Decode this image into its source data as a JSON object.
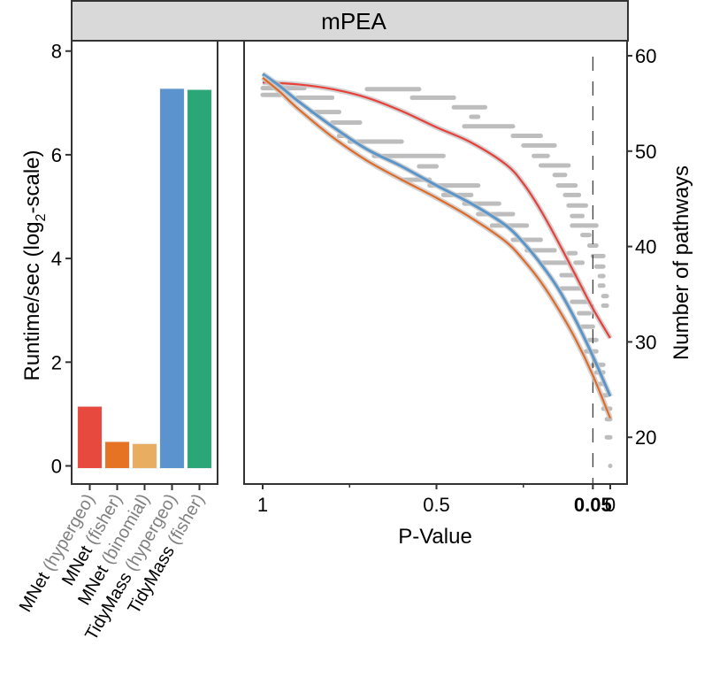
{
  "strip_title": "mPEA",
  "colors": {
    "strip_bg": "#d9d9d9",
    "frame": "#333333",
    "smear": "#bdbdbd",
    "dashed": "#333333"
  },
  "chart_data": [
    {
      "type": "bar",
      "title": "",
      "xlabel": "",
      "ylabel_main": "Runtime/sec (log",
      "ylabel_sub": "2",
      "ylabel_tail": "-scale)",
      "ylim": [
        -0.35,
        8.2
      ],
      "yticks": [
        0,
        2,
        4,
        6,
        8
      ],
      "ytick_labels": [
        "0",
        "2",
        "4",
        "6",
        "8"
      ],
      "categories": [
        {
          "tool": "MNet",
          "method": "(hypergeo)"
        },
        {
          "tool": "MNet",
          "method": "(fisher)"
        },
        {
          "tool": "MNet",
          "method": "(binomial)"
        },
        {
          "tool": "TidyMass",
          "method": "(hypergeo)"
        },
        {
          "tool": "TidyMass",
          "method": "(fisher)"
        }
      ],
      "values": [
        1.15,
        0.47,
        0.43,
        7.28,
        7.26
      ],
      "bar_colors": [
        "#e8493f",
        "#e67324",
        "#e9ad62",
        "#5a93cd",
        "#2ba677"
      ],
      "label_tool_color": "#000000",
      "label_method_color": "#808080"
    },
    {
      "type": "line",
      "title": "",
      "xlabel": "P-Value",
      "ylabel": "Number of pathways",
      "x_reversed": true,
      "xlim": [
        1.01,
        -0.03
      ],
      "ylim": [
        15.3,
        61.8
      ],
      "xticks": [
        1,
        0.5,
        0.05,
        0
      ],
      "xtick_labels": [
        "1",
        "0.5",
        "0.05",
        "0"
      ],
      "xtick_bold": [
        false,
        false,
        true,
        false
      ],
      "x_minor_ticks": [
        0.75,
        0.25
      ],
      "yticks": [
        20,
        30,
        40,
        50,
        60
      ],
      "ytick_labels": [
        "20",
        "30",
        "40",
        "50",
        "60"
      ],
      "axis_side_y": "right",
      "vline": 0.05,
      "series": [
        {
          "name": "series-red",
          "color": "#e8403a",
          "x": [
            1.0,
            0.9,
            0.8,
            0.7,
            0.6,
            0.5,
            0.4,
            0.3,
            0.25,
            0.2,
            0.15,
            0.1,
            0.05,
            0.0
          ],
          "y": [
            57.2,
            57.0,
            56.5,
            55.6,
            54.2,
            52.5,
            50.9,
            48.6,
            46.6,
            43.8,
            40.5,
            37.0,
            33.5,
            30.4
          ]
        },
        {
          "name": "series-blue",
          "color": "#5b96cb",
          "x": [
            1.0,
            0.95,
            0.9,
            0.8,
            0.7,
            0.6,
            0.5,
            0.4,
            0.3,
            0.25,
            0.2,
            0.15,
            0.1,
            0.05,
            0.0
          ],
          "y": [
            58.1,
            56.8,
            55.3,
            52.6,
            50.2,
            48.4,
            46.4,
            44.5,
            42.2,
            40.4,
            38.2,
            35.6,
            32.3,
            28.5,
            24.3
          ]
        },
        {
          "name": "series-orange",
          "color": "#e06a26",
          "x": [
            1.0,
            0.95,
            0.9,
            0.8,
            0.7,
            0.6,
            0.5,
            0.4,
            0.3,
            0.25,
            0.2,
            0.15,
            0.1,
            0.05,
            0.0
          ],
          "y": [
            57.7,
            56.2,
            54.5,
            51.5,
            49.0,
            47.0,
            45.1,
            43.0,
            40.5,
            38.6,
            36.3,
            33.5,
            30.3,
            26.5,
            22.0
          ]
        }
      ],
      "raw_points": [
        {
          "x0": 1.0,
          "x1": 0.88,
          "y": 56.6
        },
        {
          "x0": 1.0,
          "x1": 0.95,
          "y": 55.9
        },
        {
          "x0": 0.9,
          "x1": 0.8,
          "y": 55.6
        },
        {
          "x0": 0.86,
          "x1": 0.78,
          "y": 54.1
        },
        {
          "x0": 0.8,
          "x1": 0.72,
          "y": 53.0
        },
        {
          "x0": 0.78,
          "x1": 0.76,
          "y": 51.6
        },
        {
          "x0": 0.75,
          "x1": 0.6,
          "y": 51.0
        },
        {
          "x0": 0.68,
          "x1": 0.48,
          "y": 49.5
        },
        {
          "x0": 0.55,
          "x1": 0.5,
          "y": 48.4
        },
        {
          "x0": 0.6,
          "x1": 0.52,
          "y": 47.0
        },
        {
          "x0": 0.52,
          "x1": 0.38,
          "y": 46.4
        },
        {
          "x0": 0.48,
          "x1": 0.4,
          "y": 45.4
        },
        {
          "x0": 0.42,
          "x1": 0.32,
          "y": 44.5
        },
        {
          "x0": 0.38,
          "x1": 0.28,
          "y": 43.4
        },
        {
          "x0": 0.34,
          "x1": 0.24,
          "y": 42.2
        },
        {
          "x0": 0.28,
          "x1": 0.2,
          "y": 40.7
        },
        {
          "x0": 0.24,
          "x1": 0.16,
          "y": 39.6
        },
        {
          "x0": 0.2,
          "x1": 0.12,
          "y": 38.3
        },
        {
          "x0": 0.14,
          "x1": 0.1,
          "y": 37.0
        },
        {
          "x0": 0.14,
          "x1": 0.08,
          "y": 35.6
        },
        {
          "x0": 0.11,
          "x1": 0.06,
          "y": 34.2
        },
        {
          "x0": 0.09,
          "x1": 0.06,
          "y": 33.0
        },
        {
          "x0": 0.08,
          "x1": 0.05,
          "y": 31.6
        },
        {
          "x0": 0.06,
          "x1": 0.04,
          "y": 30.2
        },
        {
          "x0": 0.07,
          "x1": 0.04,
          "y": 29.0
        },
        {
          "x0": 0.05,
          "x1": 0.02,
          "y": 27.6
        },
        {
          "x0": 0.04,
          "x1": 0.02,
          "y": 26.8
        },
        {
          "x0": 0.03,
          "x1": 0.02,
          "y": 25.6
        },
        {
          "x0": 0.02,
          "x1": 0.01,
          "y": 24.4
        },
        {
          "x0": 0.02,
          "x1": 0.0,
          "y": 23.0
        },
        {
          "x0": 0.01,
          "x1": 0.0,
          "y": 21.9
        },
        {
          "x0": 0.01,
          "x1": 0.0,
          "y": 20.0
        },
        {
          "x0": 0.0,
          "x1": 0.0,
          "y": 17.0
        },
        {
          "x0": 0.7,
          "x1": 0.55,
          "y": 56.5
        },
        {
          "x0": 0.57,
          "x1": 0.45,
          "y": 55.6
        },
        {
          "x0": 0.45,
          "x1": 0.36,
          "y": 54.6
        },
        {
          "x0": 0.4,
          "x1": 0.38,
          "y": 53.6
        },
        {
          "x0": 0.42,
          "x1": 0.28,
          "y": 52.6
        },
        {
          "x0": 0.28,
          "x1": 0.2,
          "y": 51.6
        },
        {
          "x0": 0.25,
          "x1": 0.16,
          "y": 50.6
        },
        {
          "x0": 0.22,
          "x1": 0.18,
          "y": 49.5
        },
        {
          "x0": 0.2,
          "x1": 0.12,
          "y": 48.5
        },
        {
          "x0": 0.16,
          "x1": 0.13,
          "y": 47.5
        },
        {
          "x0": 0.15,
          "x1": 0.1,
          "y": 46.4
        },
        {
          "x0": 0.13,
          "x1": 0.09,
          "y": 45.4
        },
        {
          "x0": 0.12,
          "x1": 0.07,
          "y": 44.3
        },
        {
          "x0": 0.11,
          "x1": 0.08,
          "y": 43.2
        },
        {
          "x0": 0.11,
          "x1": 0.04,
          "y": 42.2
        },
        {
          "x0": 0.08,
          "x1": 0.06,
          "y": 41.2
        },
        {
          "x0": 0.06,
          "x1": 0.04,
          "y": 40.1
        },
        {
          "x0": 0.05,
          "x1": 0.02,
          "y": 39.0
        },
        {
          "x0": 0.04,
          "x1": 0.02,
          "y": 37.9
        },
        {
          "x0": 0.03,
          "x1": 0.02,
          "y": 36.9
        },
        {
          "x0": 0.03,
          "x1": 0.02,
          "y": 35.9
        },
        {
          "x0": 0.02,
          "x1": 0.01,
          "y": 34.8
        },
        {
          "x0": 0.02,
          "x1": 0.01,
          "y": 33.8
        },
        {
          "x0": 0.1,
          "x1": 0.08,
          "y": 38.3
        },
        {
          "x0": 0.12,
          "x1": 0.1,
          "y": 39.3
        }
      ]
    }
  ]
}
